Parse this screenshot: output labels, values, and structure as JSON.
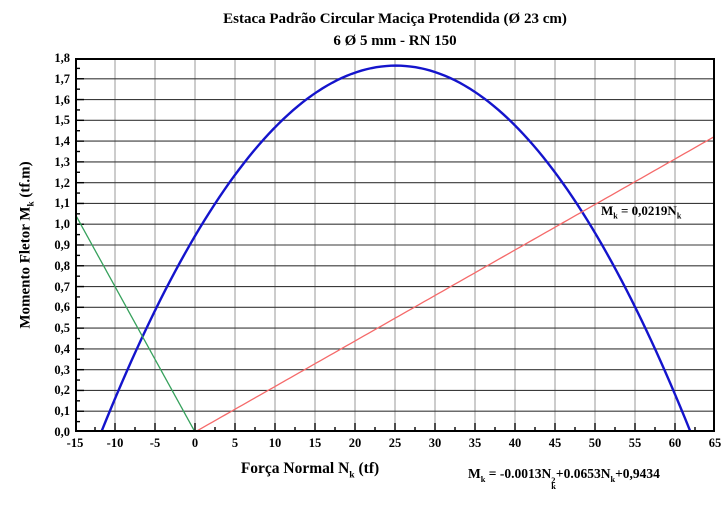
{
  "header": {
    "title": "Estaca Padrão Circular Maciça Protendida (Ø 23 cm)",
    "subtitle": "6 Ø 5 mm - RN 150"
  },
  "axes": {
    "x": {
      "label_parts": {
        "prefix": "Força Normal N",
        "sub": "k",
        "suffix": " (tf)"
      },
      "min": -15,
      "max": 65,
      "major_step": 5,
      "minor_step": 2.5,
      "tick_values": [
        -15,
        -10,
        -5,
        0,
        5,
        10,
        15,
        20,
        25,
        30,
        35,
        40,
        45,
        50,
        55,
        60,
        65
      ],
      "tick_labels": [
        "-15",
        "-10",
        "-5",
        "0",
        "5",
        "10",
        "15",
        "20",
        "25",
        "30",
        "35",
        "40",
        "45",
        "50",
        "55",
        "60",
        "65"
      ]
    },
    "y": {
      "label_parts": {
        "prefix": "Momento Fletor M",
        "sub": "k",
        "suffix": " (tf.m)"
      },
      "min": 0,
      "max": 1.8,
      "major_step": 0.1,
      "minor_step": 0.05,
      "tick_values": [
        1.8,
        1.7,
        1.6,
        1.5,
        1.4,
        1.3,
        1.2,
        1.1,
        1.0,
        0.9,
        0.8,
        0.7,
        0.6,
        0.5,
        0.4,
        0.3,
        0.2,
        0.1,
        0.0
      ],
      "tick_labels": [
        "1,8",
        "1,7",
        "1,6",
        "1,5",
        "1,4",
        "1,3",
        "1,2",
        "1,1",
        "1,0",
        "0,9",
        "0,8",
        "0,7",
        "0,6",
        "0,5",
        "0,4",
        "0,3",
        "0,2",
        "0,1",
        "0,0"
      ]
    }
  },
  "annotations": {
    "red_line_equation": {
      "m": "M",
      "m_sub": "k",
      "mid": " = 0,0219N",
      "n_sub": "k"
    },
    "parabola_equation": {
      "m": "M",
      "m_sub": "k",
      "p1": " = -0.0013N",
      "n1_sup": "2",
      "n1_sub": "k",
      "p2": "+0.0653N",
      "n2_sub": "k",
      "p3": "+0,9434"
    }
  },
  "chart_data": {
    "type": "line",
    "title": "Estaca Padrão Circular Maciça Protendida (Ø 23 cm)",
    "subtitle": "6 Ø 5 mm - RN 150",
    "xlabel": "Força Normal Nk (tf)",
    "ylabel": "Momento Fletor Mk (tf.m)",
    "xlim": [
      -15,
      65
    ],
    "ylim": [
      0,
      1.8
    ],
    "grid": true,
    "legend": "none",
    "colors": {
      "envelope": "#1414cc",
      "load_line": "#f56a6a",
      "tension_line": "#36a15c",
      "h_grid": "#3a3a3a",
      "v_grid": "#9a9a9a",
      "frame": "#000000"
    },
    "series": [
      {
        "name": "interaction-envelope-parabola",
        "color": "#1414cc",
        "stroke_width": 2.4,
        "equation_text": "Mk = -0.0013Nk^2 + 0.0653Nk + 0.9434",
        "quadratic": {
          "a": -0.0013,
          "b": 0.0653,
          "c": 0.9434
        },
        "x_range": [
          -11.655,
          61.885
        ],
        "points_sample": [
          [
            -11.66,
            0.0
          ],
          [
            -10,
            0.16
          ],
          [
            -5,
            0.58
          ],
          [
            0,
            0.94
          ],
          [
            5,
            1.24
          ],
          [
            10,
            1.47
          ],
          [
            15,
            1.63
          ],
          [
            20,
            1.73
          ],
          [
            25,
            1.76
          ],
          [
            30,
            1.73
          ],
          [
            35,
            1.64
          ],
          [
            40,
            1.47
          ],
          [
            45,
            1.25
          ],
          [
            50,
            0.96
          ],
          [
            55,
            0.6
          ],
          [
            60,
            0.18
          ],
          [
            61.89,
            0.0
          ]
        ]
      },
      {
        "name": "load-line",
        "color": "#f56a6a",
        "stroke_width": 1.3,
        "equation_text": "Mk = 0,0219Nk",
        "quadratic": {
          "a": 0,
          "b": 0.0219,
          "c": 0
        },
        "x_range": [
          0,
          65
        ],
        "points_sample": [
          [
            0,
            0.0
          ],
          [
            65,
            1.42
          ]
        ]
      },
      {
        "name": "tension-side-line",
        "color": "#36a15c",
        "stroke_width": 1.3,
        "quadratic": {
          "a": 0,
          "b": -0.07,
          "c": 0
        },
        "x_range": [
          -15,
          0
        ],
        "points_sample": [
          [
            -15,
            1.05
          ],
          [
            0,
            0.0
          ]
        ]
      }
    ]
  }
}
